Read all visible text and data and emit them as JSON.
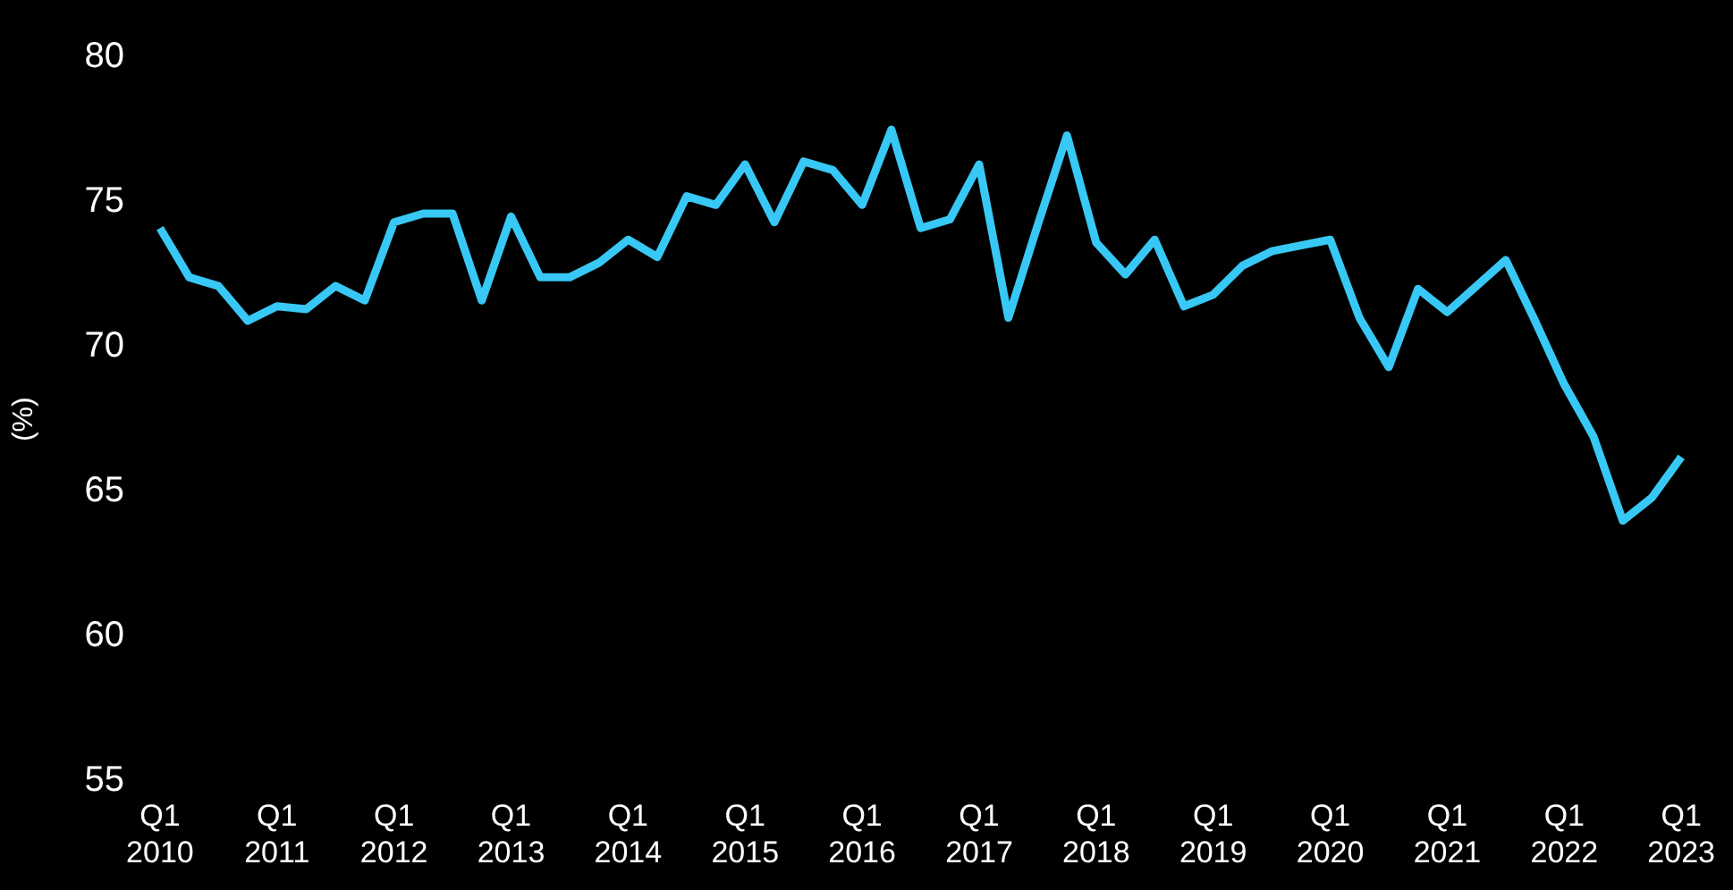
{
  "chart_data": {
    "type": "line",
    "ylabel": "(%)",
    "categories": [
      "Q1 2010",
      null,
      null,
      null,
      "Q1 2011",
      null,
      null,
      null,
      "Q1 2012",
      null,
      null,
      null,
      "Q1 2013",
      null,
      null,
      null,
      "Q1 2014",
      null,
      null,
      null,
      "Q1 2015",
      null,
      null,
      null,
      "Q1 2016",
      null,
      null,
      null,
      "Q1 2017",
      null,
      null,
      null,
      "Q1 2018",
      null,
      null,
      null,
      "Q1 2019",
      null,
      null,
      null,
      "Q1 2020",
      null,
      null,
      null,
      "Q1 2021",
      null,
      null,
      null,
      "Q1 2022",
      null,
      null,
      null,
      "Q1 2023"
    ],
    "series": [
      {
        "color": "#38c8f5",
        "values": [
          74.1,
          72.4,
          72.1,
          70.9,
          71.4,
          71.3,
          72.1,
          71.6,
          74.3,
          74.6,
          74.6,
          71.6,
          74.5,
          72.4,
          72.4,
          72.9,
          73.7,
          73.1,
          75.2,
          74.9,
          76.3,
          74.3,
          76.4,
          76.1,
          74.9,
          77.5,
          74.1,
          74.4,
          76.3,
          71.0,
          74.2,
          77.3,
          73.6,
          72.5,
          73.7,
          71.4,
          71.8,
          72.8,
          73.3,
          73.5,
          73.7,
          71.0,
          69.3,
          72.0,
          71.2,
          72.1,
          73.0,
          70.9,
          68.7,
          66.9,
          64.0,
          64.8,
          66.2
        ]
      }
    ],
    "ylim": [
      55,
      80
    ],
    "yticks": [
      55,
      60,
      65,
      70,
      75,
      80
    ],
    "grid": false,
    "legend": false,
    "marker": "none",
    "line_style": "solid"
  }
}
